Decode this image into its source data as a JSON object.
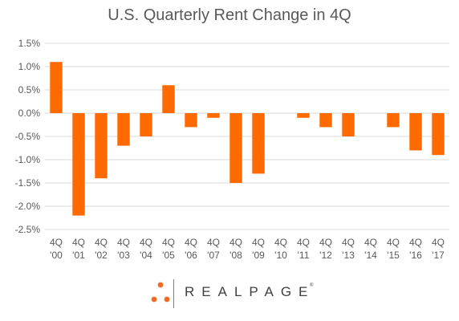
{
  "chart_data": {
    "type": "bar",
    "title": "U.S. Quarterly Rent Change in 4Q",
    "categories": [
      [
        "4Q",
        "'00"
      ],
      [
        "4Q",
        "'01"
      ],
      [
        "4Q",
        "'02"
      ],
      [
        "4Q",
        "'03"
      ],
      [
        "4Q",
        "'04"
      ],
      [
        "4Q",
        "'05"
      ],
      [
        "4Q",
        "'06"
      ],
      [
        "4Q",
        "'07"
      ],
      [
        "4Q",
        "'08"
      ],
      [
        "4Q",
        "'09"
      ],
      [
        "4Q",
        "'10"
      ],
      [
        "4Q",
        "'11"
      ],
      [
        "4Q",
        "'12"
      ],
      [
        "4Q",
        "'13"
      ],
      [
        "4Q",
        "'14"
      ],
      [
        "4Q",
        "'15"
      ],
      [
        "4Q",
        "'16"
      ],
      [
        "4Q",
        "'17"
      ]
    ],
    "values": [
      1.1,
      -2.2,
      -1.4,
      -0.7,
      -0.5,
      0.6,
      -0.3,
      -0.1,
      -1.5,
      -1.3,
      0.0,
      -0.1,
      -0.3,
      -0.5,
      0.0,
      -0.3,
      -0.8,
      -0.9
    ],
    "ylim": [
      -2.5,
      1.5
    ],
    "yticks": [
      1.5,
      1.0,
      0.5,
      0.0,
      -0.5,
      -1.0,
      -1.5,
      -2.0,
      -2.5
    ],
    "ytick_labels": [
      "1.5%",
      "1.0%",
      "0.5%",
      "0.0%",
      "-0.5%",
      "-1.0%",
      "-1.5%",
      "-2.0%",
      "-2.5%"
    ],
    "grid": true,
    "bar_color": "#ff6a00",
    "grid_color": "#d9d9d9",
    "axis_text_color": "#595959"
  },
  "logo": {
    "text": "REALPAGE",
    "mark": "®",
    "accent": "#f26a21"
  }
}
